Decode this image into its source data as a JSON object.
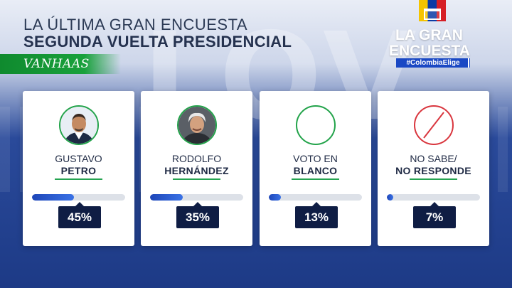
{
  "header": {
    "line1": "LA ÚLTIMA GRAN ENCUESTA",
    "line2": "SEGUNDA VUELTA PRESIDENCIAL"
  },
  "brand": {
    "name": "VANHAAS"
  },
  "logo": {
    "line1": "LA GRAN",
    "line2": "ENCUESTA",
    "hashtag": "#ColombiaElige",
    "flag_colors": [
      "#f4c400",
      "#0a3aa5",
      "#d61f26"
    ]
  },
  "background_letters": "LOV",
  "colors": {
    "accent_green": "#22a34a",
    "badge_navy": "#0f1d44",
    "bar_blue": "#1e46b8",
    "no_response_red": "#d9363e"
  },
  "candidates": [
    {
      "first": "GUSTAVO",
      "last": "PETRO",
      "percent": "45%",
      "value": 45,
      "avatar": "photo-petro"
    },
    {
      "first": "RODOLFO",
      "last": "HERNÁNDEZ",
      "percent": "35%",
      "value": 35,
      "avatar": "photo-hernandez"
    },
    {
      "first": "VOTO EN",
      "last": "BLANCO",
      "percent": "13%",
      "value": 13,
      "avatar": "empty-circle-icon"
    },
    {
      "first": "NO SABE/",
      "last": "NO RESPONDE",
      "percent": "7%",
      "value": 7,
      "avatar": "prohibited-slash-icon"
    }
  ]
}
